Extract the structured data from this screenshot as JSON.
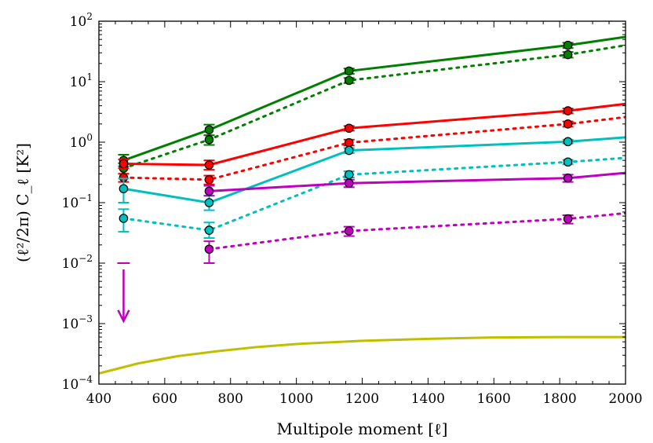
{
  "chart_data": {
    "type": "line",
    "title": "",
    "xlabel": "Multipole moment [ℓ]",
    "ylabel": "(ℓ²/2π) C_ℓ [K²]",
    "xscale": "linear",
    "yscale": "log",
    "xlim": [
      400,
      2000
    ],
    "ylim": [
      0.0001,
      100
    ],
    "x_ticks": [
      400,
      600,
      800,
      1000,
      1200,
      1400,
      1600,
      1800,
      2000
    ],
    "x_tick_labels": [
      "400",
      "600",
      "800",
      "1000",
      "1200",
      "1400",
      "1600",
      "1800",
      "2000"
    ],
    "y_ticks": [
      0.0001,
      0.001,
      0.01,
      0.1,
      1,
      10,
      100
    ],
    "y_tick_labels": [
      {
        "base": "10",
        "exp": "−4"
      },
      {
        "base": "10",
        "exp": "−3"
      },
      {
        "base": "10",
        "exp": "−2"
      },
      {
        "base": "10",
        "exp": "−1"
      },
      {
        "base": "10",
        "exp": "0"
      },
      {
        "base": "10",
        "exp": "1"
      },
      {
        "base": "10",
        "exp": "2"
      }
    ],
    "series": [
      {
        "name": "green-solid",
        "color": "#007f00",
        "style": "solid",
        "x": [
          475,
          735,
          1160,
          1825,
          2000
        ],
        "y": [
          0.5,
          1.6,
          15,
          40,
          55
        ],
        "marker_x": [
          475,
          735,
          1160,
          1825
        ],
        "marker_y": [
          0.5,
          1.6,
          15,
          40
        ],
        "err_low": [
          0.4,
          1.3,
          13.5,
          36
        ],
        "err_high": [
          0.62,
          1.95,
          16.5,
          44
        ]
      },
      {
        "name": "green-dotted",
        "color": "#007f00",
        "style": "dotted",
        "x": [
          475,
          735,
          1160,
          1825,
          2000
        ],
        "y": [
          0.37,
          1.1,
          10.5,
          28,
          40
        ],
        "marker_x": [
          475,
          735,
          1160,
          1825
        ],
        "marker_y": [
          0.37,
          1.1,
          10.5,
          28
        ],
        "err_low": [
          0.3,
          0.9,
          9.5,
          25
        ],
        "err_high": [
          0.45,
          1.3,
          11.5,
          31
        ]
      },
      {
        "name": "red-solid",
        "color": "#ff0000",
        "style": "solid",
        "x": [
          475,
          735,
          1160,
          1825,
          2000
        ],
        "y": [
          0.44,
          0.42,
          1.7,
          3.3,
          4.3
        ],
        "marker_x": [
          475,
          735,
          1160,
          1825
        ],
        "marker_y": [
          0.44,
          0.42,
          1.7,
          3.3
        ],
        "err_low": [
          0.37,
          0.35,
          1.55,
          3.0
        ],
        "err_high": [
          0.52,
          0.5,
          1.85,
          3.6
        ]
      },
      {
        "name": "red-dotted",
        "color": "#ff0000",
        "style": "dotted",
        "x": [
          475,
          735,
          1160,
          1825,
          2000
        ],
        "y": [
          0.26,
          0.24,
          0.98,
          2.0,
          2.6
        ],
        "marker_x": [
          475,
          735,
          1160,
          1825
        ],
        "marker_y": [
          0.26,
          0.24,
          0.98,
          2.0
        ],
        "err_low": [
          0.22,
          0.2,
          0.88,
          1.8
        ],
        "err_high": [
          0.3,
          0.28,
          1.1,
          2.2
        ]
      },
      {
        "name": "cyan-solid",
        "color": "#00bfbf",
        "style": "solid",
        "x": [
          475,
          735,
          1160,
          1825,
          2000
        ],
        "y": [
          0.17,
          0.1,
          0.73,
          1.02,
          1.2
        ],
        "marker_x": [
          475,
          735,
          1160,
          1825
        ],
        "marker_y": [
          0.17,
          0.1,
          0.73,
          1.02
        ],
        "err_low": [
          0.1,
          0.075,
          0.66,
          0.95
        ],
        "err_high": [
          0.25,
          0.13,
          0.8,
          1.1
        ]
      },
      {
        "name": "cyan-dotted",
        "color": "#00bfbf",
        "style": "dotted",
        "x": [
          475,
          735,
          1160,
          1825,
          2000
        ],
        "y": [
          0.055,
          0.035,
          0.29,
          0.47,
          0.55
        ],
        "marker_x": [
          475,
          735,
          1160,
          1825
        ],
        "marker_y": [
          0.055,
          0.035,
          0.29,
          0.47
        ],
        "err_low": [
          0.033,
          0.026,
          0.26,
          0.43
        ],
        "err_high": [
          0.078,
          0.047,
          0.33,
          0.51
        ]
      },
      {
        "name": "magenta-solid",
        "color": "#bf00bf",
        "style": "solid",
        "x": [
          735,
          1160,
          1825,
          2000
        ],
        "y": [
          0.155,
          0.21,
          0.255,
          0.31
        ],
        "marker_x": [
          735,
          1160,
          1825
        ],
        "marker_y": [
          0.155,
          0.21,
          0.255
        ],
        "err_low": [
          0.13,
          0.18,
          0.22
        ],
        "err_high": [
          0.19,
          0.24,
          0.29
        ]
      },
      {
        "name": "magenta-dotted",
        "color": "#bf00bf",
        "style": "dotted",
        "x": [
          735,
          1160,
          1825,
          2000
        ],
        "y": [
          0.017,
          0.034,
          0.054,
          0.067
        ],
        "marker_x": [
          735,
          1160,
          1825
        ],
        "marker_y": [
          0.017,
          0.034,
          0.054
        ],
        "err_low": [
          0.01,
          0.028,
          0.045
        ],
        "err_high": [
          0.023,
          0.04,
          0.062
        ]
      },
      {
        "name": "yellow-solid",
        "color": "#bfbf00",
        "style": "solid",
        "x": [
          400,
          520,
          640,
          760,
          880,
          1000,
          1200,
          1400,
          1600,
          1800,
          2000
        ],
        "y": [
          0.00015,
          0.00022,
          0.00029,
          0.00035,
          0.00041,
          0.00046,
          0.00052,
          0.00056,
          0.00059,
          0.0006,
          0.0006
        ],
        "marker_x": [],
        "marker_y": [],
        "err_low": [],
        "err_high": []
      }
    ],
    "upper_limits": [
      {
        "color": "#bf00bf",
        "x": 475,
        "y": 0.01,
        "arrow_to": 0.0011
      }
    ],
    "grid": false,
    "legend": "none"
  }
}
